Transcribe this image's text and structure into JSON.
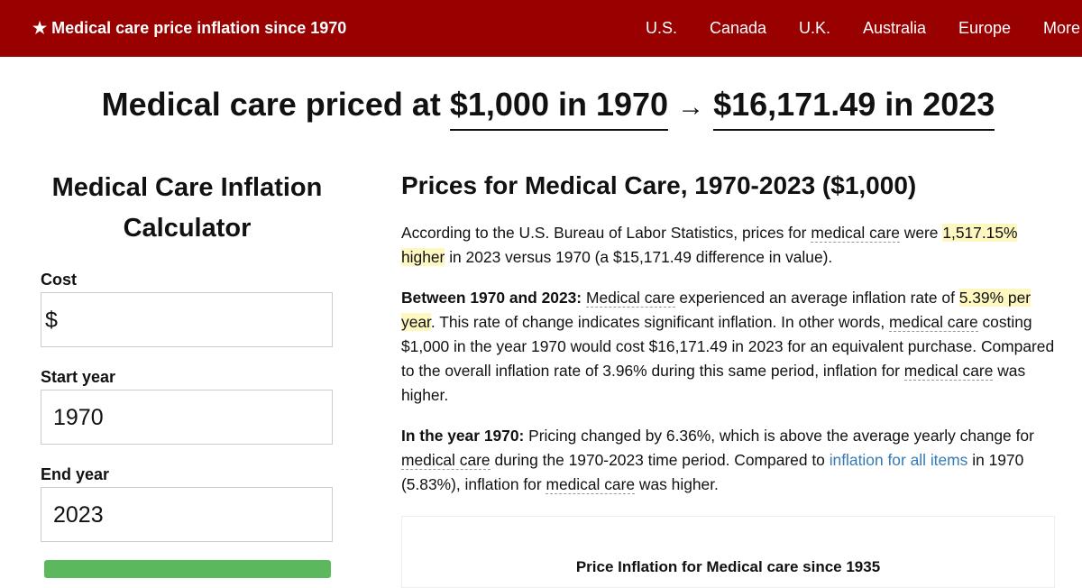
{
  "header": {
    "site_title": "★ Medical care price inflation since 1970",
    "nav": [
      "U.S.",
      "Canada",
      "U.K.",
      "Australia",
      "Europe",
      "More"
    ]
  },
  "headline": {
    "prefix": "Medical care priced at",
    "start": "$1,000 in 1970",
    "arrow": "→",
    "end": "$16,171.49 in 2023"
  },
  "calculator": {
    "title": "Medical Care Inflation Calculator",
    "cost_label": "Cost",
    "cost_prefix": "$",
    "start_label": "Start year",
    "start_value": "1970",
    "end_label": "End year",
    "end_value": "2023"
  },
  "article": {
    "title": "Prices for Medical Care, 1970-2023 ($1,000)",
    "paragraphs": [
      [
        "According to the U.S. Bureau of Labor Statistics, prices for",
        "medical care",
        "were",
        "1,517.15% higher",
        "in 2023 versus 1970 (a $15,171.49 difference in value)."
      ],
      [
        "Between 1970 and 2023:",
        "Medical care",
        "experienced an average inflation rate of",
        "5.39% per year",
        ". This rate of change indicates significant inflation. In other words,",
        "medical care",
        "costing $1,000 in the year 1970 would cost $16,171.49 in 2023 for an equivalent purchase. Compared to the overall inflation rate of 3.96% during this same period, inflation for",
        "medical care",
        "was higher."
      ],
      [
        "In the year 1970:",
        "Pricing changed by 6.36%, which is above the average yearly change for",
        "medical care",
        "during the 1970-2023 time period. Compared to",
        "inflation for all items",
        "in 1970 (5.83%), inflation for",
        "medical care",
        "was higher."
      ]
    ],
    "chart_title": "Price Inflation for Medical care since 1935"
  }
}
